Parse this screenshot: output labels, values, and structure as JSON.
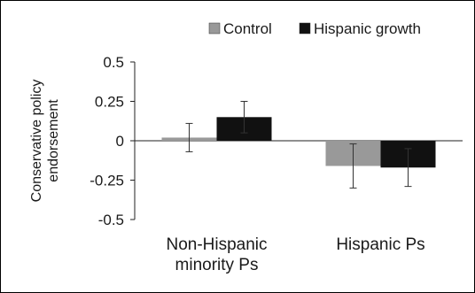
{
  "chart_data": {
    "type": "bar",
    "title": "",
    "xlabel": "",
    "ylabel_lines": [
      "Conservative policy",
      "endorsement"
    ],
    "categories": [
      [
        "Non-Hispanic",
        "minority Ps"
      ],
      [
        "Hispanic Ps"
      ]
    ],
    "series": [
      {
        "name": "Control",
        "color": "#999999",
        "values": [
          0.02,
          -0.16
        ],
        "error": [
          0.09,
          0.14
        ]
      },
      {
        "name": "Hispanic growth",
        "color": "#111111",
        "values": [
          0.15,
          -0.17
        ],
        "error": [
          0.1,
          0.12
        ]
      }
    ],
    "ylim": [
      -0.5,
      0.5
    ],
    "yticks": [
      0.5,
      0.25,
      0,
      -0.25,
      -0.5
    ],
    "ytick_labels": [
      "0.5",
      "0.25",
      "0",
      "-0.25",
      "-0.5"
    ],
    "grid": false,
    "legend_position": "top-right",
    "error_bars": true
  }
}
